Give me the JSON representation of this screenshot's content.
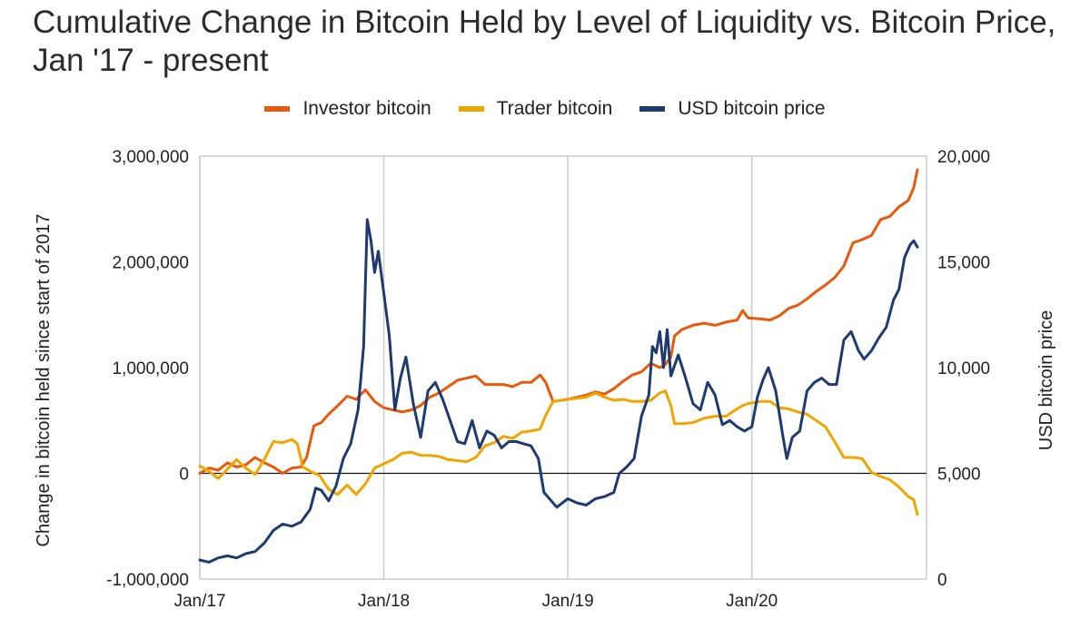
{
  "chart_data": {
    "type": "line",
    "title": "Cumulative Change in Bitcoin Held by Level of Liquidity vs. Bitcoin Price, Jan '17 - present",
    "ylabel": "Change in bitcoin held since start of 2017",
    "ylabel_right": "USD bitcoin price",
    "ylim": [
      -1000000,
      3000000
    ],
    "ylim_right": [
      0,
      20000
    ],
    "yticks": [
      "3,000,000",
      "2,000,000",
      "1,000,000",
      "0",
      "-1,000,000"
    ],
    "yticks_right": [
      "20,000",
      "15,000",
      "10,000",
      "5,000",
      "0"
    ],
    "xticks": [
      "Jan/17",
      "Jan/18",
      "Jan/19",
      "Jan/20"
    ],
    "xlim": [
      2017.0,
      2020.9
    ],
    "grid": "vertical",
    "legend_position": "top",
    "series": [
      {
        "name": "Investor bitcoin",
        "axis": "left",
        "color": "#e8590c",
        "points": [
          [
            2017.0,
            0
          ],
          [
            2017.05,
            50000
          ],
          [
            2017.1,
            30000
          ],
          [
            2017.15,
            100000
          ],
          [
            2017.2,
            60000
          ],
          [
            2017.25,
            80000
          ],
          [
            2017.3,
            150000
          ],
          [
            2017.35,
            100000
          ],
          [
            2017.4,
            60000
          ],
          [
            2017.45,
            0
          ],
          [
            2017.5,
            50000
          ],
          [
            2017.55,
            60000
          ],
          [
            2017.58,
            150000
          ],
          [
            2017.62,
            450000
          ],
          [
            2017.66,
            480000
          ],
          [
            2017.7,
            560000
          ],
          [
            2017.75,
            640000
          ],
          [
            2017.8,
            730000
          ],
          [
            2017.85,
            700000
          ],
          [
            2017.9,
            790000
          ],
          [
            2017.95,
            680000
          ],
          [
            2018.0,
            620000
          ],
          [
            2018.05,
            600000
          ],
          [
            2018.1,
            580000
          ],
          [
            2018.15,
            600000
          ],
          [
            2018.2,
            640000
          ],
          [
            2018.25,
            720000
          ],
          [
            2018.3,
            760000
          ],
          [
            2018.35,
            820000
          ],
          [
            2018.4,
            880000
          ],
          [
            2018.45,
            900000
          ],
          [
            2018.5,
            920000
          ],
          [
            2018.55,
            840000
          ],
          [
            2018.6,
            840000
          ],
          [
            2018.65,
            840000
          ],
          [
            2018.7,
            820000
          ],
          [
            2018.75,
            860000
          ],
          [
            2018.8,
            860000
          ],
          [
            2018.85,
            930000
          ],
          [
            2018.88,
            860000
          ],
          [
            2018.92,
            680000
          ],
          [
            2019.0,
            700000
          ],
          [
            2019.05,
            720000
          ],
          [
            2019.1,
            740000
          ],
          [
            2019.15,
            770000
          ],
          [
            2019.2,
            750000
          ],
          [
            2019.25,
            800000
          ],
          [
            2019.3,
            870000
          ],
          [
            2019.35,
            930000
          ],
          [
            2019.4,
            960000
          ],
          [
            2019.45,
            1040000
          ],
          [
            2019.5,
            1000000
          ],
          [
            2019.53,
            1030000
          ],
          [
            2019.56,
            1100000
          ],
          [
            2019.58,
            1300000
          ],
          [
            2019.62,
            1360000
          ],
          [
            2019.68,
            1400000
          ],
          [
            2019.74,
            1420000
          ],
          [
            2019.8,
            1400000
          ],
          [
            2019.86,
            1430000
          ],
          [
            2019.92,
            1450000
          ],
          [
            2019.95,
            1540000
          ],
          [
            2019.98,
            1470000
          ],
          [
            2020.05,
            1460000
          ],
          [
            2020.1,
            1450000
          ],
          [
            2020.15,
            1490000
          ],
          [
            2020.2,
            1560000
          ],
          [
            2020.25,
            1590000
          ],
          [
            2020.3,
            1650000
          ],
          [
            2020.35,
            1720000
          ],
          [
            2020.4,
            1780000
          ],
          [
            2020.45,
            1850000
          ],
          [
            2020.5,
            1960000
          ],
          [
            2020.55,
            2180000
          ],
          [
            2020.6,
            2210000
          ],
          [
            2020.65,
            2250000
          ],
          [
            2020.7,
            2400000
          ],
          [
            2020.75,
            2430000
          ],
          [
            2020.8,
            2520000
          ],
          [
            2020.85,
            2580000
          ],
          [
            2020.88,
            2700000
          ],
          [
            2020.9,
            2870000
          ]
        ]
      },
      {
        "name": "Trader bitcoin",
        "axis": "left",
        "color": "#f0a500",
        "points": [
          [
            2017.0,
            70000
          ],
          [
            2017.05,
            20000
          ],
          [
            2017.1,
            -50000
          ],
          [
            2017.15,
            40000
          ],
          [
            2017.2,
            130000
          ],
          [
            2017.25,
            50000
          ],
          [
            2017.3,
            -10000
          ],
          [
            2017.35,
            130000
          ],
          [
            2017.4,
            300000
          ],
          [
            2017.45,
            290000
          ],
          [
            2017.5,
            320000
          ],
          [
            2017.53,
            280000
          ],
          [
            2017.56,
            60000
          ],
          [
            2017.6,
            20000
          ],
          [
            2017.65,
            -20000
          ],
          [
            2017.7,
            -150000
          ],
          [
            2017.75,
            -200000
          ],
          [
            2017.8,
            -110000
          ],
          [
            2017.85,
            -200000
          ],
          [
            2017.9,
            -100000
          ],
          [
            2017.95,
            50000
          ],
          [
            2018.0,
            90000
          ],
          [
            2018.05,
            130000
          ],
          [
            2018.1,
            190000
          ],
          [
            2018.15,
            200000
          ],
          [
            2018.2,
            170000
          ],
          [
            2018.25,
            170000
          ],
          [
            2018.3,
            160000
          ],
          [
            2018.35,
            130000
          ],
          [
            2018.4,
            120000
          ],
          [
            2018.45,
            110000
          ],
          [
            2018.5,
            150000
          ],
          [
            2018.55,
            260000
          ],
          [
            2018.6,
            290000
          ],
          [
            2018.65,
            350000
          ],
          [
            2018.7,
            330000
          ],
          [
            2018.75,
            390000
          ],
          [
            2018.8,
            400000
          ],
          [
            2018.85,
            420000
          ],
          [
            2018.88,
            550000
          ],
          [
            2018.92,
            680000
          ],
          [
            2019.0,
            700000
          ],
          [
            2019.05,
            710000
          ],
          [
            2019.1,
            720000
          ],
          [
            2019.15,
            760000
          ],
          [
            2019.2,
            720000
          ],
          [
            2019.25,
            690000
          ],
          [
            2019.3,
            700000
          ],
          [
            2019.35,
            680000
          ],
          [
            2019.4,
            680000
          ],
          [
            2019.45,
            690000
          ],
          [
            2019.5,
            760000
          ],
          [
            2019.53,
            780000
          ],
          [
            2019.56,
            640000
          ],
          [
            2019.58,
            470000
          ],
          [
            2019.62,
            470000
          ],
          [
            2019.68,
            480000
          ],
          [
            2019.74,
            520000
          ],
          [
            2019.8,
            540000
          ],
          [
            2019.86,
            540000
          ],
          [
            2019.92,
            610000
          ],
          [
            2019.95,
            640000
          ],
          [
            2019.98,
            660000
          ],
          [
            2020.05,
            680000
          ],
          [
            2020.1,
            680000
          ],
          [
            2020.15,
            620000
          ],
          [
            2020.2,
            610000
          ],
          [
            2020.25,
            580000
          ],
          [
            2020.3,
            560000
          ],
          [
            2020.35,
            500000
          ],
          [
            2020.4,
            440000
          ],
          [
            2020.45,
            300000
          ],
          [
            2020.5,
            150000
          ],
          [
            2020.55,
            150000
          ],
          [
            2020.6,
            140000
          ],
          [
            2020.65,
            10000
          ],
          [
            2020.7,
            -30000
          ],
          [
            2020.75,
            -60000
          ],
          [
            2020.8,
            -130000
          ],
          [
            2020.85,
            -220000
          ],
          [
            2020.88,
            -250000
          ],
          [
            2020.9,
            -390000
          ]
        ]
      },
      {
        "name": "USD bitcoin price",
        "axis": "right",
        "color": "#1f3a6e",
        "points": [
          [
            2017.0,
            900
          ],
          [
            2017.05,
            800
          ],
          [
            2017.1,
            1000
          ],
          [
            2017.15,
            1100
          ],
          [
            2017.2,
            1000
          ],
          [
            2017.25,
            1200
          ],
          [
            2017.3,
            1300
          ],
          [
            2017.35,
            1700
          ],
          [
            2017.4,
            2300
          ],
          [
            2017.45,
            2600
          ],
          [
            2017.5,
            2500
          ],
          [
            2017.55,
            2700
          ],
          [
            2017.6,
            3300
          ],
          [
            2017.63,
            4300
          ],
          [
            2017.66,
            4200
          ],
          [
            2017.7,
            3700
          ],
          [
            2017.74,
            4400
          ],
          [
            2017.78,
            5700
          ],
          [
            2017.82,
            6400
          ],
          [
            2017.86,
            8000
          ],
          [
            2017.89,
            11000
          ],
          [
            2017.91,
            17000
          ],
          [
            2017.93,
            16000
          ],
          [
            2017.95,
            14500
          ],
          [
            2017.97,
            15500
          ],
          [
            2018.0,
            13500
          ],
          [
            2018.03,
            11500
          ],
          [
            2018.06,
            8000
          ],
          [
            2018.09,
            9500
          ],
          [
            2018.12,
            10500
          ],
          [
            2018.16,
            8300
          ],
          [
            2018.2,
            6700
          ],
          [
            2018.24,
            8900
          ],
          [
            2018.28,
            9300
          ],
          [
            2018.32,
            8500
          ],
          [
            2018.36,
            7500
          ],
          [
            2018.4,
            6500
          ],
          [
            2018.44,
            6400
          ],
          [
            2018.48,
            7500
          ],
          [
            2018.52,
            6200
          ],
          [
            2018.56,
            7000
          ],
          [
            2018.6,
            6800
          ],
          [
            2018.64,
            6200
          ],
          [
            2018.68,
            6500
          ],
          [
            2018.72,
            6500
          ],
          [
            2018.76,
            6400
          ],
          [
            2018.8,
            6300
          ],
          [
            2018.84,
            5700
          ],
          [
            2018.87,
            4100
          ],
          [
            2018.9,
            3800
          ],
          [
            2018.94,
            3400
          ],
          [
            2019.0,
            3800
          ],
          [
            2019.05,
            3600
          ],
          [
            2019.1,
            3500
          ],
          [
            2019.15,
            3800
          ],
          [
            2019.2,
            3900
          ],
          [
            2019.25,
            4100
          ],
          [
            2019.28,
            5000
          ],
          [
            2019.32,
            5300
          ],
          [
            2019.36,
            5700
          ],
          [
            2019.4,
            7700
          ],
          [
            2019.44,
            8700
          ],
          [
            2019.46,
            11000
          ],
          [
            2019.48,
            10700
          ],
          [
            2019.5,
            11700
          ],
          [
            2019.52,
            10000
          ],
          [
            2019.54,
            11800
          ],
          [
            2019.56,
            9600
          ],
          [
            2019.6,
            10600
          ],
          [
            2019.64,
            9500
          ],
          [
            2019.68,
            8300
          ],
          [
            2019.72,
            8000
          ],
          [
            2019.76,
            9300
          ],
          [
            2019.8,
            8700
          ],
          [
            2019.84,
            7300
          ],
          [
            2019.88,
            7500
          ],
          [
            2019.92,
            7200
          ],
          [
            2019.96,
            7000
          ],
          [
            2020.0,
            7200
          ],
          [
            2020.03,
            8600
          ],
          [
            2020.06,
            9400
          ],
          [
            2020.09,
            10000
          ],
          [
            2020.13,
            8900
          ],
          [
            2020.17,
            6700
          ],
          [
            2020.19,
            5700
          ],
          [
            2020.22,
            6700
          ],
          [
            2020.26,
            7000
          ],
          [
            2020.3,
            8900
          ],
          [
            2020.34,
            9300
          ],
          [
            2020.38,
            9500
          ],
          [
            2020.42,
            9200
          ],
          [
            2020.46,
            9200
          ],
          [
            2020.5,
            11300
          ],
          [
            2020.54,
            11700
          ],
          [
            2020.58,
            10800
          ],
          [
            2020.61,
            10400
          ],
          [
            2020.65,
            10800
          ],
          [
            2020.69,
            11400
          ],
          [
            2020.73,
            11900
          ],
          [
            2020.77,
            13200
          ],
          [
            2020.8,
            13700
          ],
          [
            2020.83,
            15200
          ],
          [
            2020.86,
            15800
          ],
          [
            2020.88,
            16000
          ],
          [
            2020.9,
            15700
          ]
        ]
      }
    ]
  }
}
